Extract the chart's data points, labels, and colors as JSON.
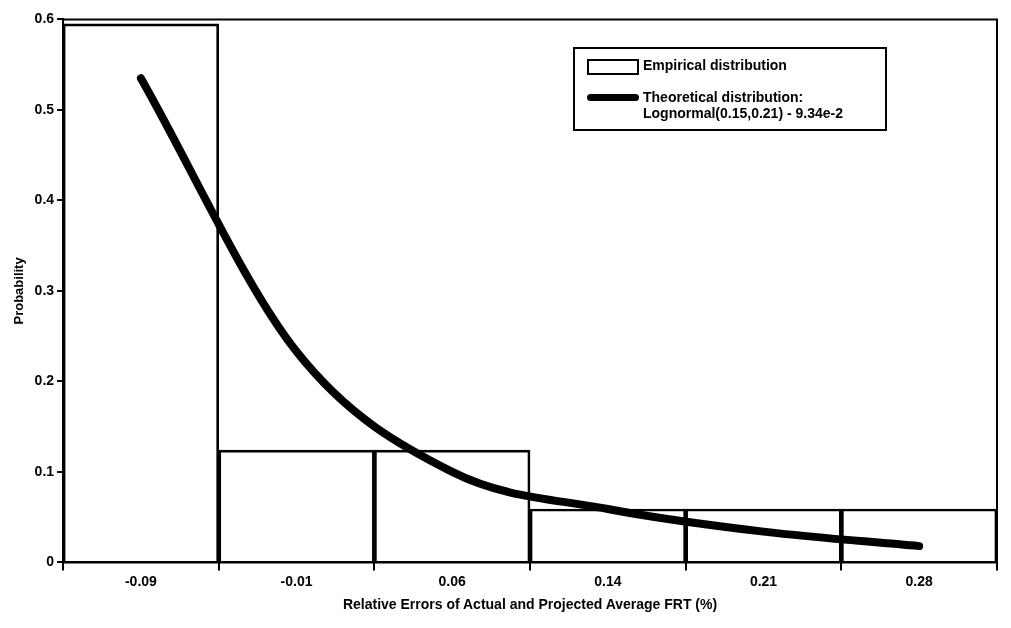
{
  "chart_data": {
    "type": "bar",
    "xlabel": "Relative Errors of Actual and Projected Average FRT (%)",
    "ylabel": "Probability",
    "categories": [
      "-0.09",
      "-0.01",
      "0.06",
      "0.14",
      "0.21",
      "0.28"
    ],
    "series": [
      {
        "name": "Empirical distribution",
        "color": "#000000",
        "values": [
          0.595,
          0.124,
          0.124,
          0.059,
          0.059,
          0.059
        ]
      },
      {
        "name": "Theoretical distribution: Lognormal(0.15,0.21) - 9.34e-2",
        "type": "line",
        "color": "#000000",
        "values": [
          0.535,
          0.233,
          0.1,
          0.059,
          0.034,
          0.018
        ]
      }
    ],
    "ylim": [
      0,
      0.6
    ],
    "yticks": [
      0,
      0.1,
      0.2,
      0.3,
      0.4,
      0.5,
      0.6
    ],
    "grid": false,
    "legend": "top right",
    "marker": "none"
  }
}
